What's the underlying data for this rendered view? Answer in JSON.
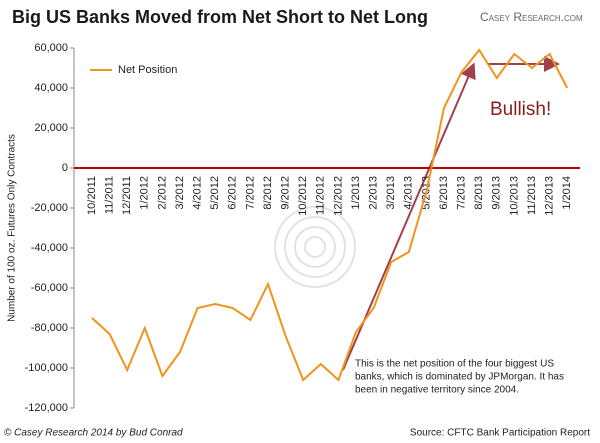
{
  "chart_data": {
    "type": "line",
    "title": "Big US Banks Moved from Net Short to Net Long",
    "logo": "Casey Research.com",
    "y_label": "Number of 100 oz. Futures Only Contracts",
    "credit": "© Casey Research 2014 by Bud Conrad",
    "source": "Source: CFTC Bank Participation Report",
    "annotations": {
      "bullish": "Bullish!",
      "note": [
        "This is the net position of the four biggest US",
        "banks, which is dominated by JPMorgan. It has",
        "been in negative territory since 2004."
      ]
    },
    "categories": [
      "10/2011",
      "11/2011",
      "12/2011",
      "1/2012",
      "2/2012",
      "3/2012",
      "4/2012",
      "5/2012",
      "6/2012",
      "7/2012",
      "8/2012",
      "9/2012",
      "10/2012",
      "11/2012",
      "12/2012",
      "1/2013",
      "2/2013",
      "3/2013",
      "4/2013",
      "5/2013",
      "6/2013",
      "7/2013",
      "8/2013",
      "9/2013",
      "10/2013",
      "11/2013",
      "12/2013",
      "1/2014"
    ],
    "series": [
      {
        "name": "Net Position",
        "color": "#f0941e",
        "values": [
          -75000,
          -83000,
          -101000,
          -80000,
          -104000,
          -92000,
          -70000,
          -68000,
          -70000,
          -76000,
          -58000,
          -84000,
          -106000,
          -98000,
          -106000,
          -82000,
          -70000,
          -47000,
          -42000,
          -12000,
          30000,
          48000,
          59000,
          45000,
          57000,
          50000,
          57000,
          40000
        ]
      }
    ],
    "ylim": [
      -120000,
      60000
    ],
    "yticks": [
      {
        "value": -120000,
        "label": "-120,000"
      },
      {
        "value": -100000,
        "label": "-100,000"
      },
      {
        "value": -80000,
        "label": "-80,000"
      },
      {
        "value": -60000,
        "label": "-60,000"
      },
      {
        "value": -40000,
        "label": "-40,000"
      },
      {
        "value": -20000,
        "label": "-20,000"
      },
      0,
      {
        "value": 20000,
        "label": "20,000"
      },
      {
        "value": 40000,
        "label": "40,000"
      },
      {
        "value": 60000,
        "label": "60,000"
      }
    ],
    "zero_line_color": "#c00000"
  }
}
